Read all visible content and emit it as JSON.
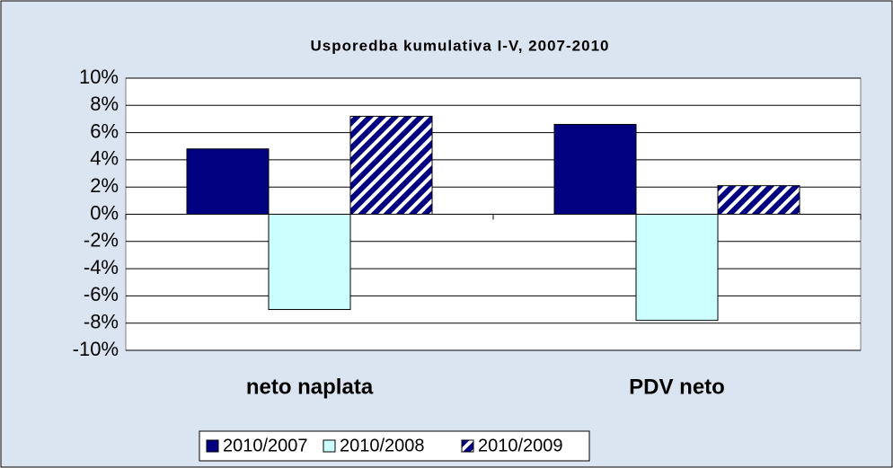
{
  "chart_data": {
    "type": "bar",
    "title": "Usporedba kumulativa I-V, 2007-2010",
    "categories": [
      "neto naplata",
      "PDV neto"
    ],
    "series": [
      {
        "name": "2010/2007",
        "color": "#000080",
        "values": [
          4.8,
          6.6
        ]
      },
      {
        "name": "2010/2008",
        "color": "#ccffff",
        "values": [
          -7.0,
          -7.8
        ]
      },
      {
        "name": "2010/2009",
        "color": "#000080",
        "hatch": true,
        "values": [
          7.2,
          2.1
        ]
      }
    ],
    "ylim": [
      -10,
      10
    ],
    "yticks": [
      {
        "value": -10,
        "label": "-10%"
      },
      {
        "value": -8,
        "label": "-8%"
      },
      {
        "value": -6,
        "label": "-6%"
      },
      {
        "value": -4,
        "label": "-4%"
      },
      {
        "value": -2,
        "label": "-2%"
      },
      {
        "value": 0,
        "label": "0%"
      },
      {
        "value": 2,
        "label": "2%"
      },
      {
        "value": 4,
        "label": "4%"
      },
      {
        "value": 6,
        "label": "6%"
      },
      {
        "value": 8,
        "label": "8%"
      },
      {
        "value": 10,
        "label": "10%"
      }
    ],
    "grid": true,
    "legend": "bottom"
  }
}
